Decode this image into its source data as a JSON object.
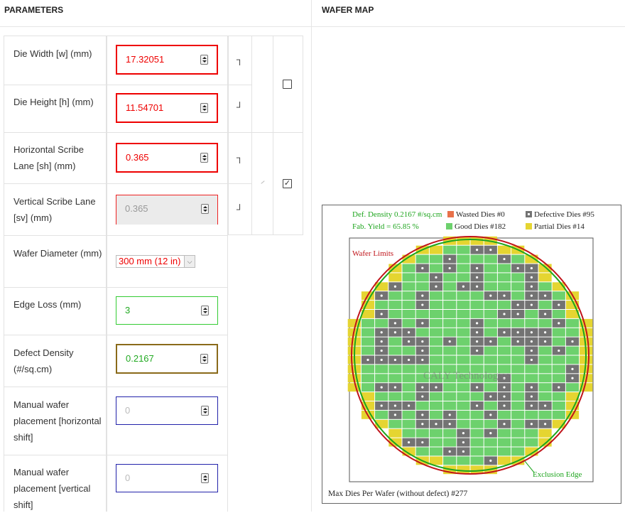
{
  "headers": {
    "parameters": "PARAMETERS",
    "wafer_map": "WAFER MAP"
  },
  "params": {
    "die_width": {
      "label": "Die Width [w] (mm)",
      "value": "17.32051"
    },
    "die_height": {
      "label": "Die Height [h] (mm)",
      "value": "11.54701"
    },
    "h_scribe": {
      "label": "Horizontal Scribe Lane [sh] (mm)",
      "value": "0.365"
    },
    "v_scribe": {
      "label": "Vertical Scribe Lane [sv] (mm)",
      "value": "0.365"
    },
    "wafer_diameter": {
      "label": "Wafer Diameter (mm)",
      "value": "300 mm (12 in)"
    },
    "edge_loss": {
      "label": "Edge Loss (mm)",
      "value": "3"
    },
    "defect_density": {
      "label": "Defect Density (#/sq.cm)",
      "value": "0.2167"
    },
    "h_shift": {
      "label": "Manual wafer placement [horizontal shift]",
      "placeholder": "0"
    },
    "v_shift": {
      "label": "Manual wafer placement [vertical shift]",
      "placeholder": "0"
    }
  },
  "wafer": {
    "def_density": "Def. Density 0.2167 #/sq.cm",
    "fab_yield": "Fab. Yield = 65.85 %",
    "wasted": "Wasted Dies  #0",
    "defective": "Defective Dies  #95",
    "good": "Good Dies #182",
    "partial": "Partial Dies #14",
    "wafer_limits": "Wafer Limits",
    "exclusion_edge": "Exclusion Edge",
    "watermark": "CALY Technologies",
    "max_dies": "Max Dies Per Wafer (without defect) #277",
    "colors": {
      "good": "#6dd16d",
      "defective": "#737373",
      "partial": "#e5d531",
      "wasted": "#e8714a",
      "wafer_limit": "#c0141a",
      "exclusion": "#1ea51e",
      "legend_green": "#1ea51e",
      "legend_red": "#c0141a"
    }
  }
}
